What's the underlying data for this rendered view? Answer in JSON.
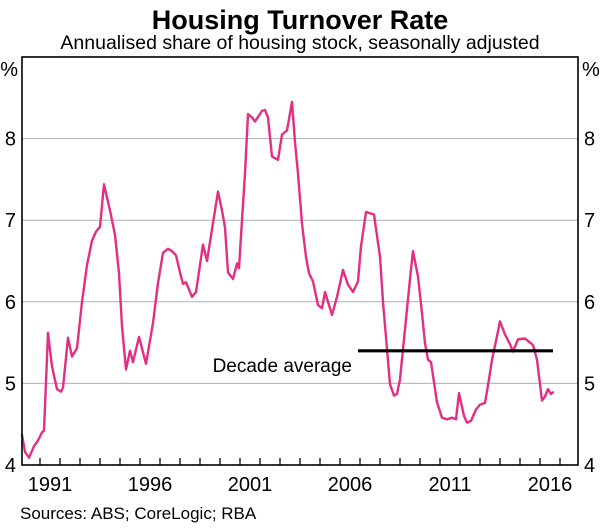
{
  "header": {
    "title": "Housing Turnover Rate",
    "subtitle": "Annualised share of housing stock, seasonally adjusted"
  },
  "footer": {
    "sources": "Sources: ABS; CoreLogic; RBA"
  },
  "colors": {
    "series": "#e22e83",
    "gridline": "#b0b0b0",
    "frame": "#000000",
    "decade_line": "#000000",
    "text": "#000000"
  },
  "chart_data": {
    "type": "line",
    "title": "Housing Turnover Rate",
    "subtitle": "Annualised share of housing stock, seasonally adjusted",
    "sources": "Sources: ABS; CoreLogic; RBA",
    "unit": "%",
    "grid": "horizontal-only",
    "legend": "none",
    "x_axis": {
      "range": [
        1990.1,
        2017.9
      ],
      "first_tick": 1991,
      "last_tick": 2017,
      "tick_interval": 1,
      "label_years": [
        1991,
        1996,
        2001,
        2006,
        2011,
        2016
      ]
    },
    "y_axis": {
      "range": [
        4,
        9
      ],
      "ticks": [
        4,
        5,
        6,
        7,
        8
      ],
      "gridlines": [
        5,
        6,
        7,
        8
      ],
      "unit": "%",
      "labelled_both_sides": true
    },
    "series": [
      {
        "name": "Housing turnover rate",
        "color": "#e22e83",
        "points": [
          [
            1990.1,
            4.37
          ],
          [
            1990.25,
            4.16
          ],
          [
            1990.45,
            4.09
          ],
          [
            1990.7,
            4.23
          ],
          [
            1990.9,
            4.3
          ],
          [
            1991.1,
            4.4
          ],
          [
            1991.2,
            4.42
          ],
          [
            1991.4,
            5.62
          ],
          [
            1991.6,
            5.21
          ],
          [
            1991.85,
            4.93
          ],
          [
            1992.05,
            4.9
          ],
          [
            1992.15,
            4.95
          ],
          [
            1992.4,
            5.56
          ],
          [
            1992.6,
            5.33
          ],
          [
            1992.85,
            5.43
          ],
          [
            1993.1,
            6.0
          ],
          [
            1993.35,
            6.45
          ],
          [
            1993.6,
            6.75
          ],
          [
            1993.8,
            6.86
          ],
          [
            1994.0,
            6.92
          ],
          [
            1994.2,
            7.44
          ],
          [
            1994.5,
            7.12
          ],
          [
            1994.75,
            6.82
          ],
          [
            1994.95,
            6.35
          ],
          [
            1995.1,
            5.7
          ],
          [
            1995.3,
            5.17
          ],
          [
            1995.5,
            5.4
          ],
          [
            1995.65,
            5.26
          ],
          [
            1995.95,
            5.57
          ],
          [
            1996.3,
            5.24
          ],
          [
            1996.65,
            5.74
          ],
          [
            1996.9,
            6.23
          ],
          [
            1997.15,
            6.6
          ],
          [
            1997.4,
            6.65
          ],
          [
            1997.6,
            6.62
          ],
          [
            1997.8,
            6.57
          ],
          [
            1998.0,
            6.36
          ],
          [
            1998.15,
            6.22
          ],
          [
            1998.3,
            6.24
          ],
          [
            1998.6,
            6.06
          ],
          [
            1998.8,
            6.12
          ],
          [
            1999.15,
            6.7
          ],
          [
            1999.35,
            6.5
          ],
          [
            1999.9,
            7.35
          ],
          [
            2000.1,
            7.12
          ],
          [
            2000.25,
            6.91
          ],
          [
            2000.4,
            6.36
          ],
          [
            2000.65,
            6.28
          ],
          [
            2000.85,
            6.47
          ],
          [
            2000.95,
            6.41
          ],
          [
            2001.1,
            7.0
          ],
          [
            2001.25,
            7.57
          ],
          [
            2001.4,
            8.3
          ],
          [
            2001.6,
            8.26
          ],
          [
            2001.75,
            8.21
          ],
          [
            2002.1,
            8.34
          ],
          [
            2002.25,
            8.35
          ],
          [
            2002.4,
            8.26
          ],
          [
            2002.6,
            7.78
          ],
          [
            2002.9,
            7.74
          ],
          [
            2003.1,
            8.05
          ],
          [
            2003.35,
            8.1
          ],
          [
            2003.6,
            8.45
          ],
          [
            2003.75,
            7.96
          ],
          [
            2003.9,
            7.57
          ],
          [
            2004.1,
            6.96
          ],
          [
            2004.3,
            6.55
          ],
          [
            2004.45,
            6.35
          ],
          [
            2004.65,
            6.25
          ],
          [
            2004.9,
            5.96
          ],
          [
            2005.1,
            5.92
          ],
          [
            2005.25,
            6.12
          ],
          [
            2005.6,
            5.84
          ],
          [
            2005.85,
            6.06
          ],
          [
            2006.15,
            6.39
          ],
          [
            2006.4,
            6.21
          ],
          [
            2006.65,
            6.12
          ],
          [
            2006.9,
            6.25
          ],
          [
            2007.05,
            6.68
          ],
          [
            2007.3,
            7.1
          ],
          [
            2007.7,
            7.07
          ],
          [
            2008.0,
            6.55
          ],
          [
            2008.15,
            6.0
          ],
          [
            2008.35,
            5.42
          ],
          [
            2008.5,
            4.99
          ],
          [
            2008.7,
            4.85
          ],
          [
            2008.85,
            4.87
          ],
          [
            2009.0,
            5.05
          ],
          [
            2009.15,
            5.42
          ],
          [
            2009.35,
            5.91
          ],
          [
            2009.55,
            6.4
          ],
          [
            2009.65,
            6.62
          ],
          [
            2009.9,
            6.31
          ],
          [
            2010.1,
            5.86
          ],
          [
            2010.25,
            5.49
          ],
          [
            2010.4,
            5.29
          ],
          [
            2010.55,
            5.26
          ],
          [
            2010.85,
            4.77
          ],
          [
            2011.1,
            4.58
          ],
          [
            2011.35,
            4.56
          ],
          [
            2011.6,
            4.58
          ],
          [
            2011.8,
            4.56
          ],
          [
            2011.95,
            4.88
          ],
          [
            2012.2,
            4.6
          ],
          [
            2012.35,
            4.52
          ],
          [
            2012.55,
            4.54
          ],
          [
            2012.8,
            4.68
          ],
          [
            2013.0,
            4.74
          ],
          [
            2013.25,
            4.76
          ],
          [
            2013.45,
            5.05
          ],
          [
            2013.6,
            5.29
          ],
          [
            2013.85,
            5.58
          ],
          [
            2014.0,
            5.76
          ],
          [
            2014.25,
            5.6
          ],
          [
            2014.5,
            5.48
          ],
          [
            2014.65,
            5.39
          ],
          [
            2014.9,
            5.54
          ],
          [
            2015.25,
            5.55
          ],
          [
            2015.5,
            5.5
          ],
          [
            2015.65,
            5.47
          ],
          [
            2015.85,
            5.29
          ],
          [
            2016.1,
            4.79
          ],
          [
            2016.25,
            4.84
          ],
          [
            2016.4,
            4.93
          ],
          [
            2016.55,
            4.87
          ],
          [
            2016.65,
            4.89
          ]
        ]
      }
    ],
    "annotations": [
      {
        "type": "hline",
        "label": "Decade average",
        "value": 5.4,
        "from": 2006.9,
        "to": 2016.65
      }
    ]
  }
}
